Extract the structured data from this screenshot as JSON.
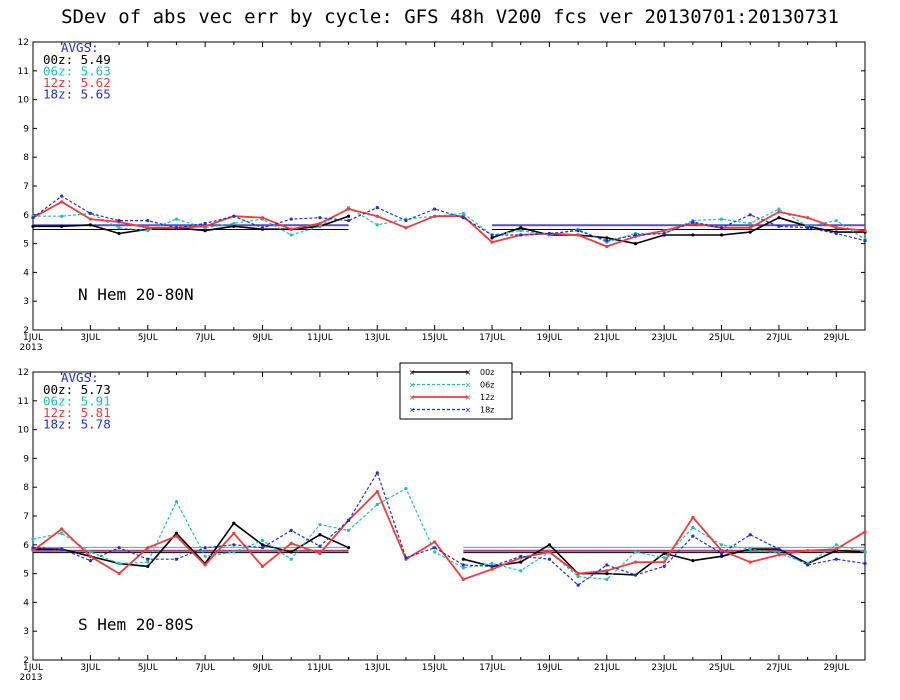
{
  "title": "SDev of abs vec err by cycle: GFS 48h V200 fcs ver 20130701:20130731",
  "colors": {
    "00z": "#000000",
    "06z": "#20c0c0",
    "12z": "#f03c3c",
    "18z": "#2030d0",
    "avgs_header": "#2030d0"
  },
  "chart_data": [
    {
      "type": "line",
      "panel_label": "N Hem 20-80N",
      "x": [
        1,
        2,
        3,
        4,
        5,
        6,
        7,
        8,
        9,
        10,
        11,
        12,
        13,
        14,
        15,
        16,
        17,
        18,
        19,
        20,
        21,
        22,
        23,
        24,
        25,
        26,
        27,
        28,
        29,
        30
      ],
      "xtick_labels": [
        "1JUL",
        "3JUL",
        "5JUL",
        "7JUL",
        "9JUL",
        "11JUL",
        "13JUL",
        "15JUL",
        "17JUL",
        "19JUL",
        "21JUL",
        "23JUL",
        "25JUL",
        "27JUL",
        "29JUL"
      ],
      "xtick_year": "2013",
      "ylim": [
        2,
        12
      ],
      "yticks": [
        "2",
        "3",
        "4",
        "5",
        "6",
        "7",
        "8",
        "9",
        "10",
        "11",
        "12"
      ],
      "avgs_header": "AVGS:",
      "series": [
        {
          "name": "00z",
          "avg_label": "00z: 5.49",
          "avg": 5.49,
          "values": [
            5.6,
            5.6,
            5.65,
            5.35,
            5.5,
            5.55,
            5.45,
            5.6,
            5.5,
            5.5,
            5.6,
            5.95,
            null,
            null,
            null,
            null,
            5.2,
            5.55,
            5.3,
            5.3,
            5.2,
            5.0,
            5.3,
            5.3,
            5.3,
            5.4,
            5.9,
            5.6,
            5.4,
            5.4
          ]
        },
        {
          "name": "06z",
          "avg_label": "06z: 5.63",
          "avg": 5.63,
          "values": [
            5.95,
            5.95,
            6.05,
            5.55,
            5.45,
            5.85,
            5.55,
            5.7,
            5.85,
            5.3,
            5.6,
            6.25,
            5.65,
            5.85,
            5.95,
            6.05,
            5.3,
            5.45,
            5.3,
            5.5,
            5.05,
            5.35,
            5.35,
            5.8,
            5.85,
            5.7,
            6.2,
            5.6,
            5.8,
            5.15
          ]
        },
        {
          "name": "12z",
          "avg_label": "12z: 5.62",
          "avg": 5.62,
          "values": [
            5.9,
            6.45,
            5.85,
            5.75,
            5.55,
            5.55,
            5.6,
            5.95,
            5.9,
            5.5,
            5.7,
            6.2,
            5.95,
            5.55,
            5.95,
            5.95,
            5.05,
            5.3,
            5.35,
            5.3,
            4.9,
            5.25,
            5.45,
            5.7,
            5.55,
            5.55,
            6.1,
            5.9,
            5.55,
            5.45
          ]
        },
        {
          "name": "18z",
          "avg_label": "18z: 5.65",
          "avg": 5.65,
          "values": [
            5.9,
            6.65,
            6.05,
            5.8,
            5.8,
            5.55,
            5.7,
            5.95,
            5.55,
            5.85,
            5.9,
            5.8,
            6.25,
            5.8,
            6.2,
            5.9,
            5.3,
            5.3,
            5.35,
            5.45,
            5.1,
            5.3,
            5.35,
            5.75,
            5.55,
            6.0,
            5.6,
            5.55,
            5.35,
            5.1
          ]
        }
      ]
    },
    {
      "type": "line",
      "panel_label": "S Hem 20-80S",
      "x": [
        1,
        2,
        3,
        4,
        5,
        6,
        7,
        8,
        9,
        10,
        11,
        12,
        13,
        14,
        15,
        16,
        17,
        18,
        19,
        20,
        21,
        22,
        23,
        24,
        25,
        26,
        27,
        28,
        29,
        30
      ],
      "xtick_labels": [
        "1JUL",
        "3JUL",
        "5JUL",
        "7JUL",
        "9JUL",
        "11JUL",
        "13JUL",
        "15JUL",
        "17JUL",
        "19JUL",
        "21JUL",
        "23JUL",
        "25JUL",
        "27JUL",
        "29JUL"
      ],
      "xtick_year": "2013",
      "ylim": [
        2,
        12
      ],
      "yticks": [
        "2",
        "3",
        "4",
        "5",
        "6",
        "7",
        "8",
        "9",
        "10",
        "11",
        "12"
      ],
      "avgs_header": "AVGS:",
      "series": [
        {
          "name": "00z",
          "avg_label": "00z: 5.73",
          "avg": 5.73,
          "values": [
            5.85,
            5.85,
            5.6,
            5.35,
            5.25,
            6.4,
            5.35,
            6.75,
            6.0,
            5.75,
            6.35,
            5.9,
            null,
            null,
            null,
            5.5,
            5.25,
            5.4,
            6.0,
            5.0,
            5.0,
            4.95,
            5.7,
            5.45,
            5.6,
            5.85,
            5.85,
            5.35,
            5.8,
            5.75
          ]
        },
        {
          "name": "06z",
          "avg_label": "06z: 5.91",
          "avg": 5.91,
          "values": [
            6.2,
            6.4,
            5.75,
            5.35,
            5.4,
            7.5,
            5.6,
            5.75,
            6.15,
            5.5,
            6.7,
            6.5,
            7.4,
            7.95,
            5.75,
            5.2,
            5.35,
            5.1,
            5.75,
            4.9,
            4.8,
            5.75,
            5.55,
            6.6,
            6.0,
            5.85,
            5.7,
            5.35,
            6.0,
            5.75
          ]
        },
        {
          "name": "12z",
          "avg_label": "12z: 5.81",
          "avg": 5.81,
          "values": [
            5.8,
            6.55,
            5.6,
            5.0,
            5.9,
            6.3,
            5.3,
            6.4,
            5.25,
            6.05,
            5.7,
            6.85,
            7.85,
            5.5,
            6.1,
            4.8,
            5.15,
            5.55,
            5.75,
            5.0,
            5.1,
            5.4,
            5.4,
            6.95,
            5.8,
            5.4,
            5.65,
            5.8,
            5.85,
            6.45
          ]
        },
        {
          "name": "18z",
          "avg_label": "18z: 5.78",
          "avg": 5.78,
          "values": [
            5.9,
            5.85,
            5.45,
            5.9,
            5.5,
            5.5,
            5.9,
            6.0,
            5.9,
            6.5,
            5.95,
            6.85,
            8.5,
            5.55,
            5.9,
            5.3,
            5.25,
            5.6,
            5.5,
            4.6,
            5.3,
            4.95,
            5.25,
            6.3,
            5.7,
            6.35,
            5.85,
            5.3,
            5.5,
            5.35
          ]
        }
      ]
    }
  ],
  "legend": [
    {
      "name": "00z",
      "label": "00z"
    },
    {
      "name": "06z",
      "label": "06z"
    },
    {
      "name": "12z",
      "label": "12z"
    },
    {
      "name": "18z",
      "label": "18z"
    }
  ]
}
